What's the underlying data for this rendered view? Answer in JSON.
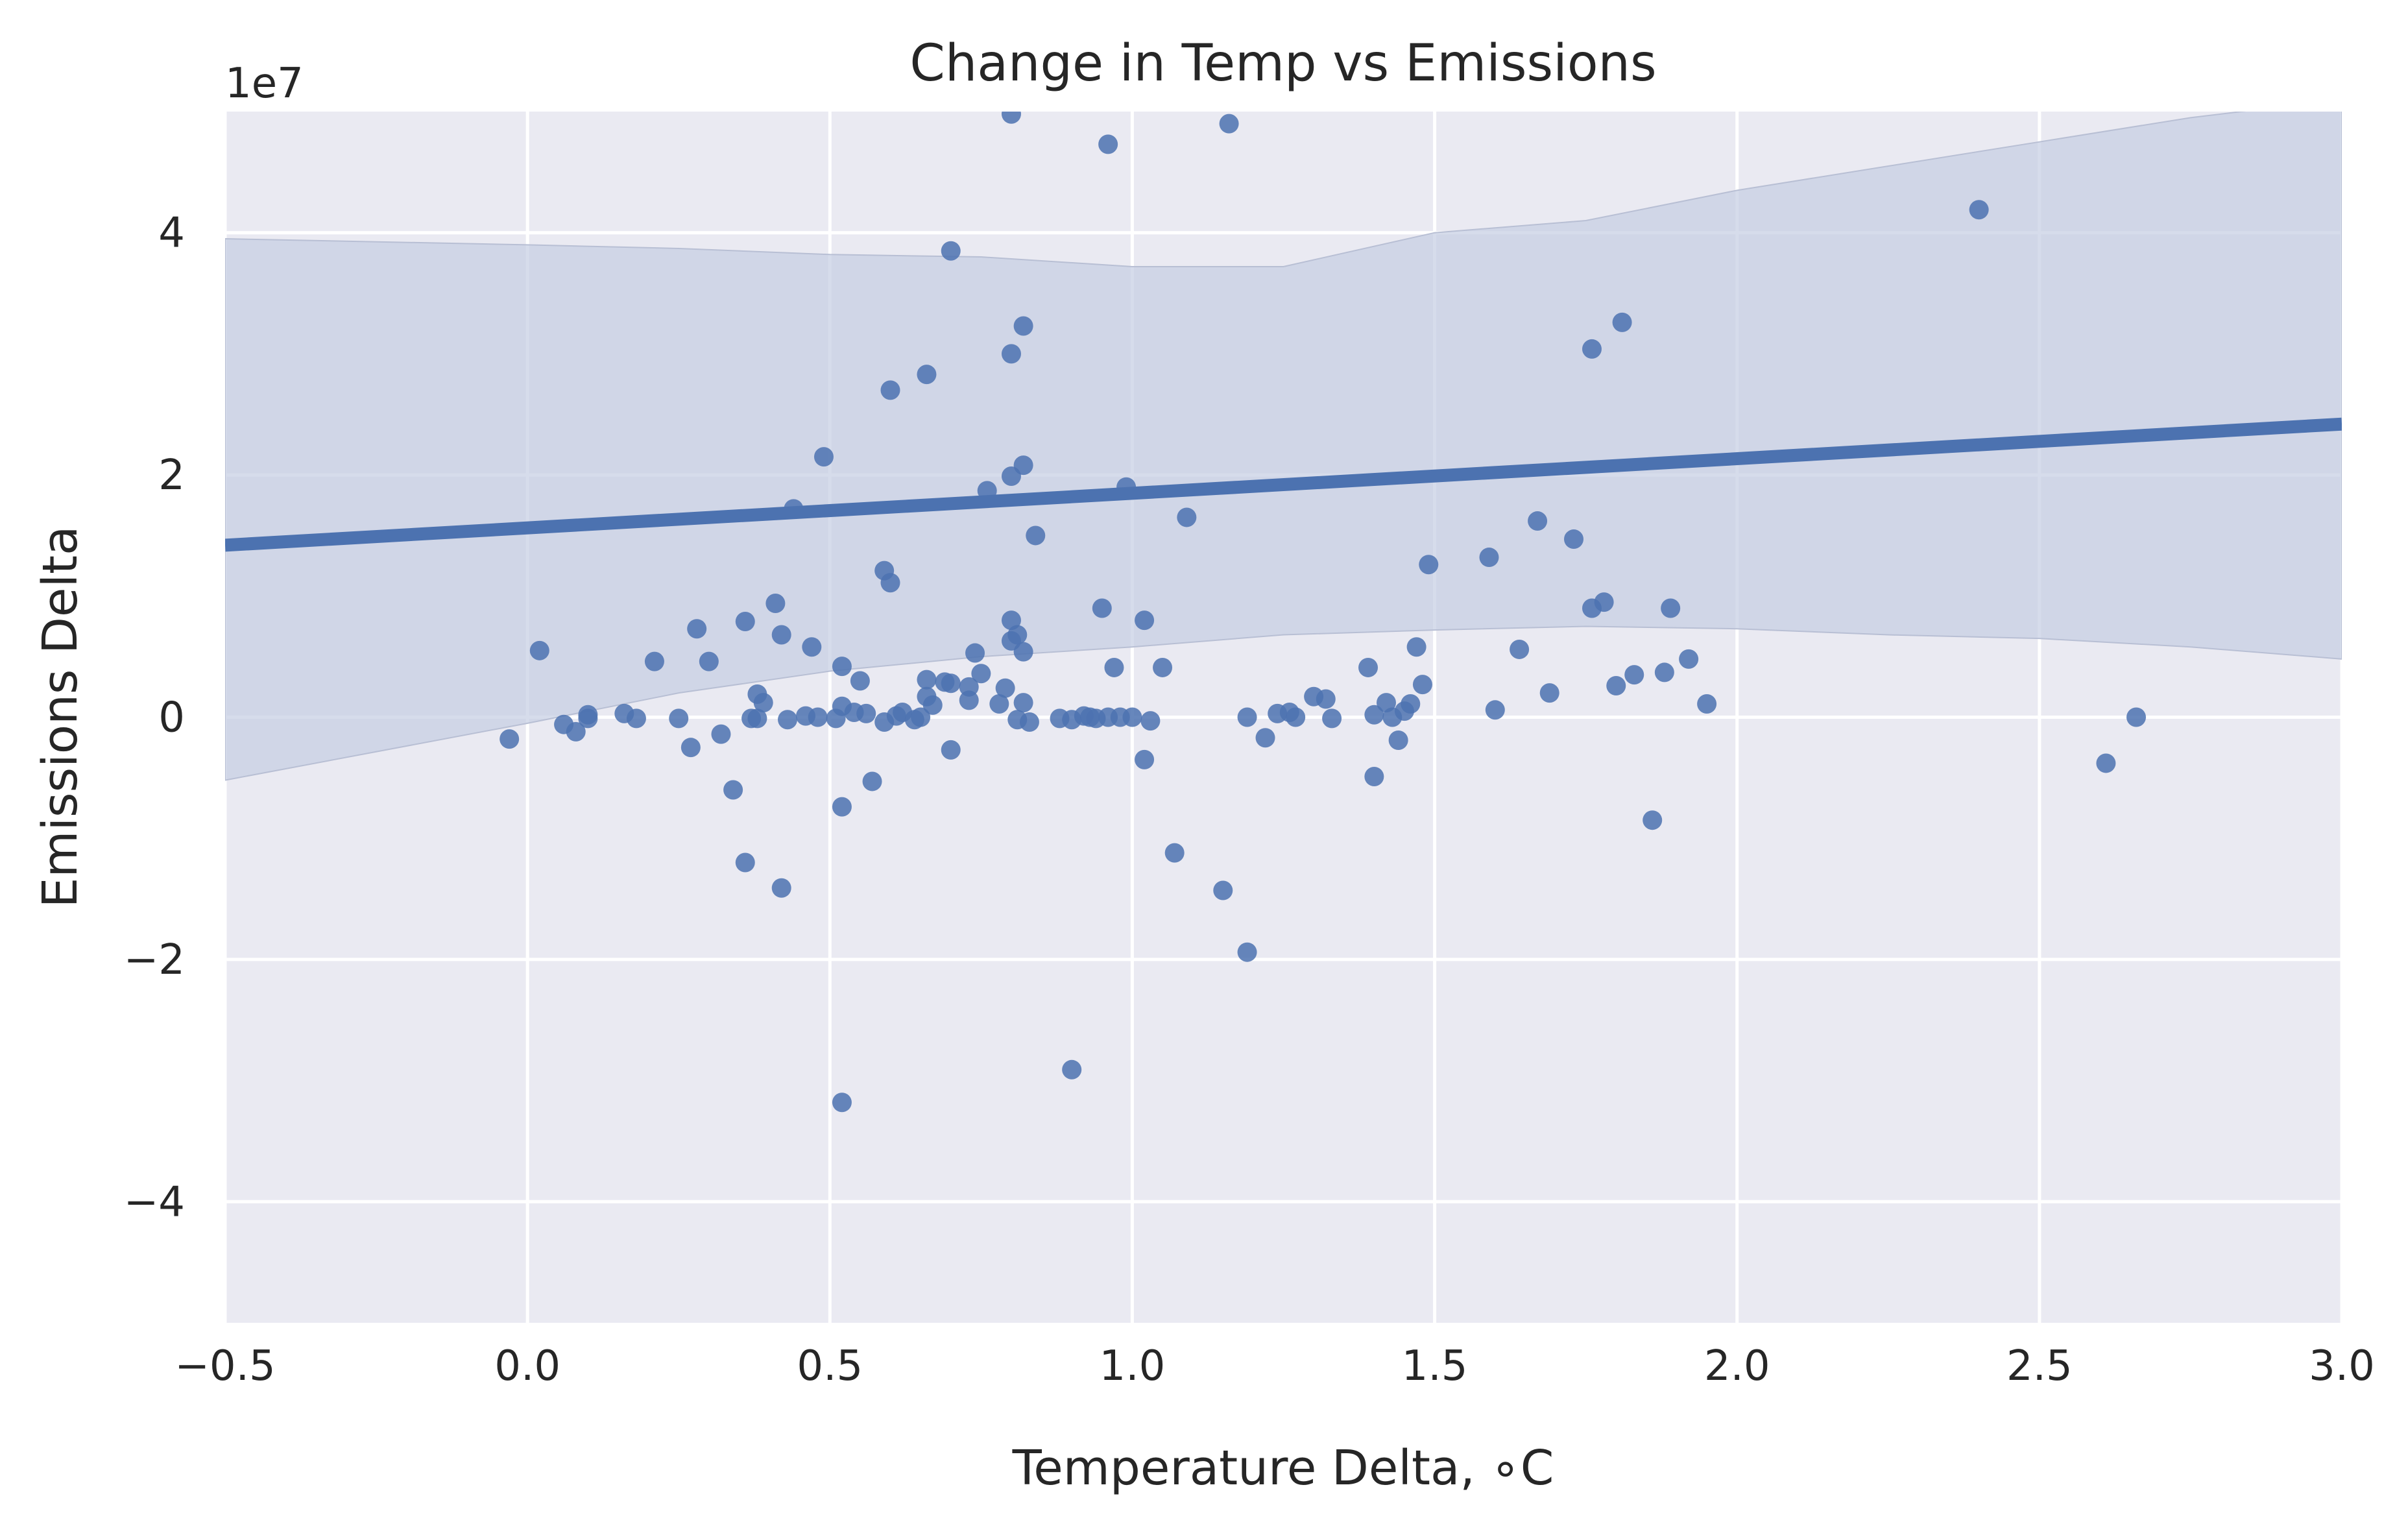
{
  "chart_data": {
    "type": "scatter",
    "title": "Change in Temp vs Emissions",
    "xlabel": "Temperature Delta, $^\\circ$C",
    "xlabel_display": "Temperature Delta, ∘C",
    "ylabel": "Emissions Delta",
    "y_offset_label": "1e7",
    "xlim": [
      -0.5,
      3.0
    ],
    "ylim": [
      -5.0,
      5.0
    ],
    "y_scale_note": "values in units of 1e7",
    "x_ticks": [
      -0.5,
      0.0,
      0.5,
      1.0,
      1.5,
      2.0,
      2.5,
      3.0
    ],
    "x_tick_labels": [
      "−0.5",
      "0.0",
      "0.5",
      "1.0",
      "1.5",
      "2.0",
      "2.5",
      "3.0"
    ],
    "y_ticks": [
      -4,
      -2,
      0,
      2,
      4
    ],
    "y_tick_labels": [
      "−4",
      "−2",
      "0",
      "2",
      "4"
    ],
    "grid": true,
    "colors": {
      "background": "#eaeaf2",
      "grid": "#ffffff",
      "point": "#4c72b0",
      "band": "#c4cde3",
      "text": "#262626"
    },
    "regression_line": {
      "x": [
        -0.5,
        3.0
      ],
      "y": [
        1.42,
        2.42
      ]
    },
    "confidence_band": {
      "x": [
        -0.5,
        0.0,
        0.25,
        0.5,
        0.75,
        1.0,
        1.25,
        1.5,
        1.75,
        2.0,
        2.25,
        2.5,
        2.75,
        3.0
      ],
      "upper": [
        3.95,
        3.9,
        3.87,
        3.82,
        3.8,
        3.72,
        3.72,
        4.0,
        4.1,
        4.35,
        4.55,
        4.75,
        4.95,
        5.1
      ],
      "lower": [
        -0.52,
        -0.05,
        0.2,
        0.38,
        0.5,
        0.58,
        0.68,
        0.72,
        0.75,
        0.73,
        0.68,
        0.65,
        0.58,
        0.48
      ]
    },
    "series": [
      {
        "points": [
          [
            -0.03,
            -0.18
          ],
          [
            0.02,
            0.55
          ],
          [
            0.06,
            -0.06
          ],
          [
            0.08,
            -0.12
          ],
          [
            0.1,
            0.02
          ],
          [
            0.1,
            -0.01
          ],
          [
            0.16,
            0.03
          ],
          [
            0.18,
            -0.01
          ],
          [
            0.21,
            0.46
          ],
          [
            0.25,
            -0.01
          ],
          [
            0.27,
            -0.25
          ],
          [
            0.28,
            0.73
          ],
          [
            0.3,
            0.46
          ],
          [
            0.32,
            -0.14
          ],
          [
            0.34,
            -0.6
          ],
          [
            0.36,
            0.79
          ],
          [
            0.36,
            -1.2
          ],
          [
            0.37,
            -0.01
          ],
          [
            0.38,
            -0.01
          ],
          [
            0.38,
            0.19
          ],
          [
            0.39,
            0.12
          ],
          [
            0.41,
            0.94
          ],
          [
            0.42,
            0.68
          ],
          [
            0.43,
            -0.02
          ],
          [
            0.44,
            1.72
          ],
          [
            0.42,
            -1.41
          ],
          [
            0.46,
            0.01
          ],
          [
            0.47,
            0.58
          ],
          [
            0.48,
            0.0
          ],
          [
            0.49,
            2.15
          ],
          [
            0.51,
            -0.01
          ],
          [
            0.52,
            0.09
          ],
          [
            0.52,
            0.42
          ],
          [
            0.52,
            -0.74
          ],
          [
            0.52,
            -3.18
          ],
          [
            0.54,
            0.04
          ],
          [
            0.55,
            0.3
          ],
          [
            0.56,
            0.03
          ],
          [
            0.57,
            -0.53
          ],
          [
            0.59,
            -0.04
          ],
          [
            0.59,
            1.21
          ],
          [
            0.6,
            2.7
          ],
          [
            0.6,
            1.11
          ],
          [
            0.61,
            0.01
          ],
          [
            0.62,
            0.04
          ],
          [
            0.64,
            -0.02
          ],
          [
            0.65,
            0.0
          ],
          [
            0.66,
            0.31
          ],
          [
            0.66,
            0.17
          ],
          [
            0.66,
            2.83
          ],
          [
            0.67,
            0.1
          ],
          [
            0.69,
            0.29
          ],
          [
            0.7,
            0.28
          ],
          [
            0.7,
            3.85
          ],
          [
            0.7,
            -0.27
          ],
          [
            0.73,
            0.25
          ],
          [
            0.73,
            0.14
          ],
          [
            0.74,
            0.53
          ],
          [
            0.75,
            0.36
          ],
          [
            0.76,
            1.87
          ],
          [
            0.78,
            0.11
          ],
          [
            0.79,
            0.24
          ],
          [
            0.8,
            0.8
          ],
          [
            0.8,
            0.63
          ],
          [
            0.8,
            3.0
          ],
          [
            0.8,
            1.99
          ],
          [
            0.8,
            4.98
          ],
          [
            0.81,
            0.68
          ],
          [
            0.81,
            -0.02
          ],
          [
            0.82,
            0.54
          ],
          [
            0.82,
            3.23
          ],
          [
            0.82,
            2.08
          ],
          [
            0.82,
            0.12
          ],
          [
            0.83,
            -0.04
          ],
          [
            0.84,
            1.5
          ],
          [
            0.88,
            -0.01
          ],
          [
            0.9,
            -0.02
          ],
          [
            0.9,
            -2.91
          ],
          [
            0.92,
            0.01
          ],
          [
            0.93,
            0.0
          ],
          [
            0.94,
            -0.01
          ],
          [
            0.95,
            0.9
          ],
          [
            0.96,
            0.0
          ],
          [
            0.96,
            4.73
          ],
          [
            0.97,
            0.41
          ],
          [
            0.98,
            0.0
          ],
          [
            0.99,
            1.9
          ],
          [
            1.0,
            0.0
          ],
          [
            1.02,
            0.8
          ],
          [
            1.02,
            -0.35
          ],
          [
            1.03,
            -0.03
          ],
          [
            1.05,
            0.41
          ],
          [
            1.07,
            -1.12
          ],
          [
            1.09,
            1.65
          ],
          [
            1.15,
            -1.43
          ],
          [
            1.16,
            4.9
          ],
          [
            1.19,
            0.0
          ],
          [
            1.19,
            -1.94
          ],
          [
            1.22,
            -0.17
          ],
          [
            1.24,
            0.03
          ],
          [
            1.26,
            0.04
          ],
          [
            1.27,
            0.0
          ],
          [
            1.3,
            0.17
          ],
          [
            1.32,
            0.15
          ],
          [
            1.33,
            -0.01
          ],
          [
            1.39,
            0.41
          ],
          [
            1.4,
            0.02
          ],
          [
            1.4,
            -0.49
          ],
          [
            1.42,
            0.12
          ],
          [
            1.43,
            0.0
          ],
          [
            1.44,
            -0.19
          ],
          [
            1.45,
            0.05
          ],
          [
            1.46,
            0.11
          ],
          [
            1.47,
            0.58
          ],
          [
            1.48,
            0.27
          ],
          [
            1.49,
            1.26
          ],
          [
            1.59,
            1.32
          ],
          [
            1.6,
            0.06
          ],
          [
            1.64,
            0.56
          ],
          [
            1.67,
            1.62
          ],
          [
            1.69,
            0.2
          ],
          [
            1.73,
            1.47
          ],
          [
            1.76,
            0.9
          ],
          [
            1.76,
            3.04
          ],
          [
            1.78,
            0.95
          ],
          [
            1.8,
            0.26
          ],
          [
            1.81,
            3.26
          ],
          [
            1.83,
            0.35
          ],
          [
            1.86,
            -0.85
          ],
          [
            1.88,
            0.37
          ],
          [
            1.89,
            0.9
          ],
          [
            1.92,
            0.48
          ],
          [
            1.95,
            0.11
          ],
          [
            2.4,
            4.19
          ],
          [
            2.61,
            -0.38
          ],
          [
            2.66,
            0.0
          ]
        ]
      }
    ]
  }
}
